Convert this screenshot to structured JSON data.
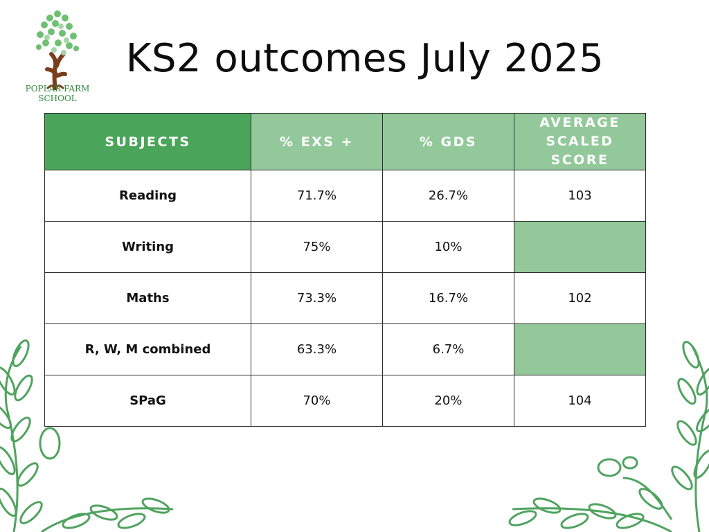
{
  "title": "KS2 outcomes July 2025",
  "logo": {
    "line1": "POPLAR FARM",
    "line2": "SCHOOL"
  },
  "table": {
    "headers": [
      "SUBJECTS",
      "% EXS +",
      "% GDS",
      "AVERAGE SCALED SCORE"
    ],
    "avg_header_line1": "AVERAGE",
    "avg_header_line2": "SCALED SCORE",
    "rows": [
      {
        "subject": "Reading",
        "exs": "71.7%",
        "gds": "26.7%",
        "avg": "103"
      },
      {
        "subject": "Writing",
        "exs": "75%",
        "gds": "10%",
        "avg": ""
      },
      {
        "subject": "Maths",
        "exs": "73.3%",
        "gds": "16.7%",
        "avg": "102"
      },
      {
        "subject": "R, W, M combined",
        "exs": "63.3%",
        "gds": "6.7%",
        "avg": ""
      },
      {
        "subject": "SPaG",
        "exs": "70%",
        "gds": "20%",
        "avg": "104"
      }
    ]
  },
  "colors": {
    "dark_green": "#4aa55a",
    "light_green": "#93c99a",
    "vine_green": "#4fa35f"
  }
}
